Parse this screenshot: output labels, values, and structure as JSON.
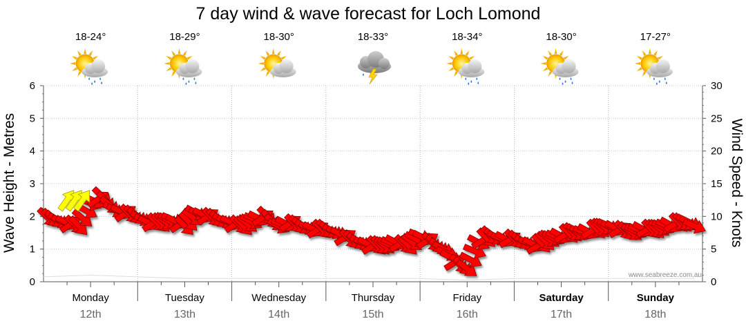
{
  "chart_data": {
    "type": "line",
    "title": "7 day wind & wave forecast for Loch Lomond",
    "ylabel_left": "Wave Height - Metres",
    "ylabel_right": "Wind Speed - Knots",
    "ylim_left": [
      0,
      6
    ],
    "ylim_right": [
      0,
      30
    ],
    "yticks_left": [
      "0",
      "1",
      "2",
      "3",
      "4",
      "5",
      "6"
    ],
    "yticks_right": [
      "0",
      "5",
      "10",
      "15",
      "20",
      "25",
      "30"
    ],
    "grid": true,
    "credit": "www.seabreeze.com.au",
    "days": [
      {
        "name": "Monday",
        "date": "12th",
        "temp": "18-24°",
        "icon": "sun-cloud-rain-icon",
        "bold": false
      },
      {
        "name": "Tuesday",
        "date": "13th",
        "temp": "18-29°",
        "icon": "sun-cloud-rain-icon",
        "bold": false
      },
      {
        "name": "Wednesday",
        "date": "14th",
        "temp": "18-30°",
        "icon": "sun-cloud-icon",
        "bold": false
      },
      {
        "name": "Thursday",
        "date": "15th",
        "temp": "18-33°",
        "icon": "storm-cloud-icon",
        "bold": false
      },
      {
        "name": "Friday",
        "date": "16th",
        "temp": "18-34°",
        "icon": "sun-cloud-rain-icon",
        "bold": false
      },
      {
        "name": "Saturday",
        "date": "17th",
        "temp": "18-30°",
        "icon": "sun-cloud-rain-icon",
        "bold": true
      },
      {
        "name": "Sunday",
        "date": "18th",
        "temp": "17-27°",
        "icon": "sun-cloud-rain-icon",
        "bold": true
      }
    ],
    "series": [
      {
        "name": "Wind Speed",
        "axis": "right",
        "unit": "knots",
        "x_hours": [
          0,
          3,
          6,
          9,
          12,
          15,
          18,
          21,
          24,
          27,
          30,
          33,
          36,
          39,
          42,
          45,
          48,
          51,
          54,
          57,
          60,
          63,
          66,
          69,
          72,
          75,
          78,
          81,
          84,
          87,
          90,
          93,
          96,
          99,
          102,
          105,
          108,
          111,
          114,
          117,
          120,
          123,
          126,
          129,
          132,
          135,
          138,
          141,
          144,
          147,
          150,
          153,
          156,
          159,
          162,
          165,
          166
        ],
        "values": [
          10,
          9.5,
          9,
          8.5,
          12,
          13,
          11,
          10.5,
          10,
          9,
          9,
          9.5,
          8.5,
          10.5,
          10,
          9.5,
          9,
          8.5,
          9.5,
          10,
          8.5,
          9,
          8.5,
          8,
          8,
          7.5,
          6.5,
          6,
          5.5,
          5.5,
          6,
          5.5,
          7,
          6,
          5,
          3,
          2,
          6,
          7,
          6.5,
          6.5,
          6,
          5.5,
          6.5,
          7,
          7.5,
          7.5,
          8,
          8.5,
          8,
          7.5,
          8,
          8,
          8.5,
          9,
          9,
          8.5
        ],
        "color": "#ff0000"
      },
      {
        "name": "Wave Height",
        "axis": "left",
        "unit": "metres",
        "x_hours": [
          0,
          12,
          24,
          36,
          48,
          60,
          72,
          84,
          96,
          108,
          120,
          132,
          144,
          156,
          166
        ],
        "values": [
          0.15,
          0.2,
          0.15,
          0.1,
          0.1,
          0.1,
          0.1,
          0.1,
          0.1,
          0.05,
          0.1,
          0.1,
          0.1,
          0.1,
          0.1
        ],
        "color": "#ffffff"
      }
    ],
    "gust_markers": {
      "x_hours": [
        6,
        8,
        10
      ],
      "values": [
        12.5,
        12.5,
        12.5
      ],
      "color": "#ffff00"
    }
  }
}
